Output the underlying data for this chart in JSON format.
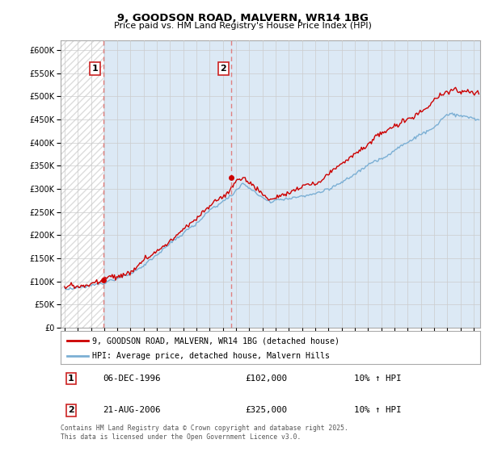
{
  "title_line1": "9, GOODSON ROAD, MALVERN, WR14 1BG",
  "title_line2": "Price paid vs. HM Land Registry's House Price Index (HPI)",
  "xlim_start": 1993.7,
  "xlim_end": 2025.5,
  "ylim_min": 0,
  "ylim_max": 620000,
  "yticks": [
    0,
    50000,
    100000,
    150000,
    200000,
    250000,
    300000,
    350000,
    400000,
    450000,
    500000,
    550000,
    600000
  ],
  "ytick_labels": [
    "£0",
    "£50K",
    "£100K",
    "£150K",
    "£200K",
    "£250K",
    "£300K",
    "£350K",
    "£400K",
    "£450K",
    "£500K",
    "£550K",
    "£600K"
  ],
  "xticks": [
    1994,
    1995,
    1996,
    1997,
    1998,
    1999,
    2000,
    2001,
    2002,
    2003,
    2004,
    2005,
    2006,
    2007,
    2008,
    2009,
    2010,
    2011,
    2012,
    2013,
    2014,
    2015,
    2016,
    2017,
    2018,
    2019,
    2020,
    2021,
    2022,
    2023,
    2024,
    2025
  ],
  "price_paid_color": "#cc0000",
  "hpi_color": "#7bafd4",
  "hpi_fill_color": "#dce9f5",
  "marker1_x": 1996.92,
  "marker1_y": 102000,
  "marker1_label": "1",
  "marker1_date": "06-DEC-1996",
  "marker1_price": "£102,000",
  "marker1_hpi": "10% ↑ HPI",
  "marker2_x": 2006.64,
  "marker2_y": 325000,
  "marker2_label": "2",
  "marker2_date": "21-AUG-2006",
  "marker2_price": "£325,000",
  "marker2_hpi": "10% ↑ HPI",
  "vline_color": "#e08080",
  "legend_label1": "9, GOODSON ROAD, MALVERN, WR14 1BG (detached house)",
  "legend_label2": "HPI: Average price, detached house, Malvern Hills",
  "footnote": "Contains HM Land Registry data © Crown copyright and database right 2025.\nThis data is licensed under the Open Government Licence v3.0.",
  "background_color": "#ffffff",
  "plot_bg_color": "#ffffff",
  "grid_color": "#cccccc",
  "hatch_color": "#bbbbbb"
}
